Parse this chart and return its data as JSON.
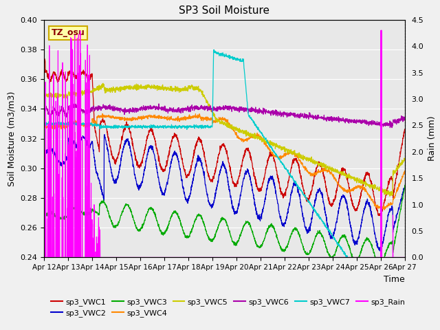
{
  "title": "SP3 Soil Moisture",
  "ylabel_left": "Soil Moisture (m3/m3)",
  "ylabel_right": "Rain (mm)",
  "xlabel": "Time",
  "ylim_left": [
    0.24,
    0.4
  ],
  "ylim_right": [
    0.0,
    4.5
  ],
  "fig_facecolor": "#f0f0f0",
  "ax_facecolor": "#e8e8e8",
  "annotation_text": "TZ_osu",
  "annotation_color": "#8B0000",
  "annotation_bg": "#ffffaa",
  "annotation_border": "#ccaa00",
  "series_colors": {
    "sp3_VWC1": "#cc0000",
    "sp3_VWC2": "#0000cc",
    "sp3_VWC3": "#00aa00",
    "sp3_VWC4": "#ff8800",
    "sp3_VWC5": "#cccc00",
    "sp3_VWC6": "#aa00aa",
    "sp3_VWC7": "#00cccc",
    "sp3_Rain": "#ff00ff"
  },
  "xtick_labels": [
    "Apr 12",
    "Apr 13",
    "Apr 14",
    "Apr 15",
    "Apr 16",
    "Apr 17",
    "Apr 18",
    "Apr 19",
    "Apr 20",
    "Apr 21",
    "Apr 22",
    "Apr 23",
    "Apr 24",
    "Apr 25",
    "Apr 26",
    "Apr 27"
  ],
  "ytick_left": [
    0.24,
    0.26,
    0.28,
    0.3,
    0.32,
    0.34,
    0.36,
    0.38,
    0.4
  ],
  "ytick_right": [
    0.0,
    0.5,
    1.0,
    1.5,
    2.0,
    2.5,
    3.0,
    3.5,
    4.0,
    4.5
  ]
}
